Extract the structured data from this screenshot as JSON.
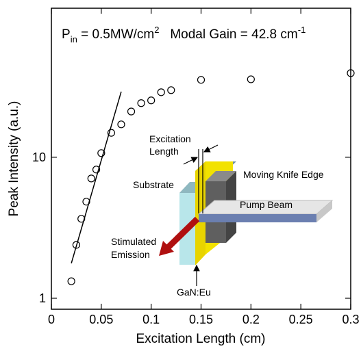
{
  "chart_data": {
    "type": "scatter",
    "title_parts": [
      "P",
      "in",
      " = 0.5MW/cm",
      "2",
      "   Modal Gain = 42.8 cm",
      "-1"
    ],
    "x_label": "Excitation Length (cm)",
    "y_label": "Peak Intensity (a.u.)",
    "log_y": true,
    "xlim": [
      0,
      0.3
    ],
    "ylim": [
      0.836,
      114
    ],
    "xticks": [
      0,
      0.05,
      0.1,
      0.15,
      0.2,
      0.25,
      0.3
    ],
    "yticks": [
      1,
      10
    ],
    "series": [
      {
        "style": "marker",
        "color": "#000000",
        "x": [
          0.02,
          0.025,
          0.03,
          0.035,
          0.04,
          0.045,
          0.05,
          0.06,
          0.07,
          0.08,
          0.09,
          0.1,
          0.11,
          0.12,
          0.15,
          0.2,
          0.3
        ],
        "values": [
          1.32,
          2.39,
          3.66,
          4.84,
          7.07,
          8.18,
          10.7,
          14.9,
          17.1,
          21.1,
          24.2,
          25.3,
          28.9,
          29.9,
          35.4,
          35.7,
          39.5
        ]
      },
      {
        "style": "line",
        "color": "#000000",
        "x": [
          0.02,
          0.07
        ],
        "values": [
          1.77,
          29.2
        ]
      }
    ],
    "inset": {
      "excitation_length": [
        "Excitation",
        "Length"
      ],
      "substrate": "Substrate",
      "knife_edge": "Moving Knife Edge",
      "pump_beam": "Pump Beam",
      "emission": [
        "Stimulated",
        "Emission"
      ],
      "layer": "GaN:Eu"
    }
  }
}
